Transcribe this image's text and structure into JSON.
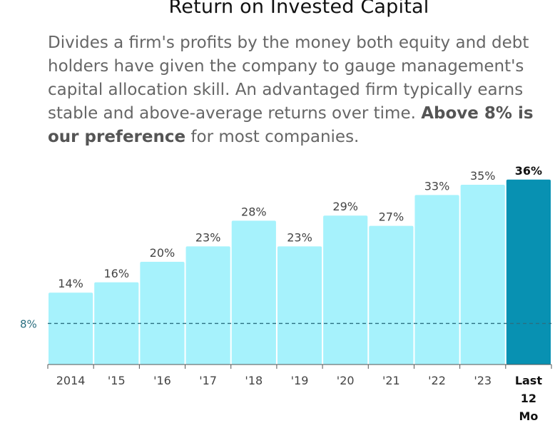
{
  "title": "Return on Invested Capital",
  "description": {
    "text": "Divides a firm's profits by the money both equity and debt holders have given the company to gauge management's capital allocation skill. An advantaged firm typically earns stable and above-average returns over time. ",
    "bold": "Above 8% is our preference",
    "tail": " for most companies."
  },
  "colors": {
    "bar": "#a6f2fc",
    "highlight_bar": "#0891b2",
    "reference_line": "#2a6f80"
  },
  "chart_data": {
    "type": "bar",
    "categories": [
      "2014",
      "'15",
      "'16",
      "'17",
      "'18",
      "'19",
      "'20",
      "'21",
      "'22",
      "'23",
      "Last 12 Mo"
    ],
    "values": [
      14,
      16,
      20,
      23,
      28,
      23,
      29,
      27,
      33,
      35,
      36
    ],
    "value_labels": [
      "14%",
      "16%",
      "20%",
      "23%",
      "28%",
      "23%",
      "29%",
      "27%",
      "33%",
      "35%",
      "36%"
    ],
    "highlight_index": 10,
    "reference_line": {
      "value": 8,
      "label": "8%"
    },
    "ylim": [
      0,
      36
    ]
  }
}
